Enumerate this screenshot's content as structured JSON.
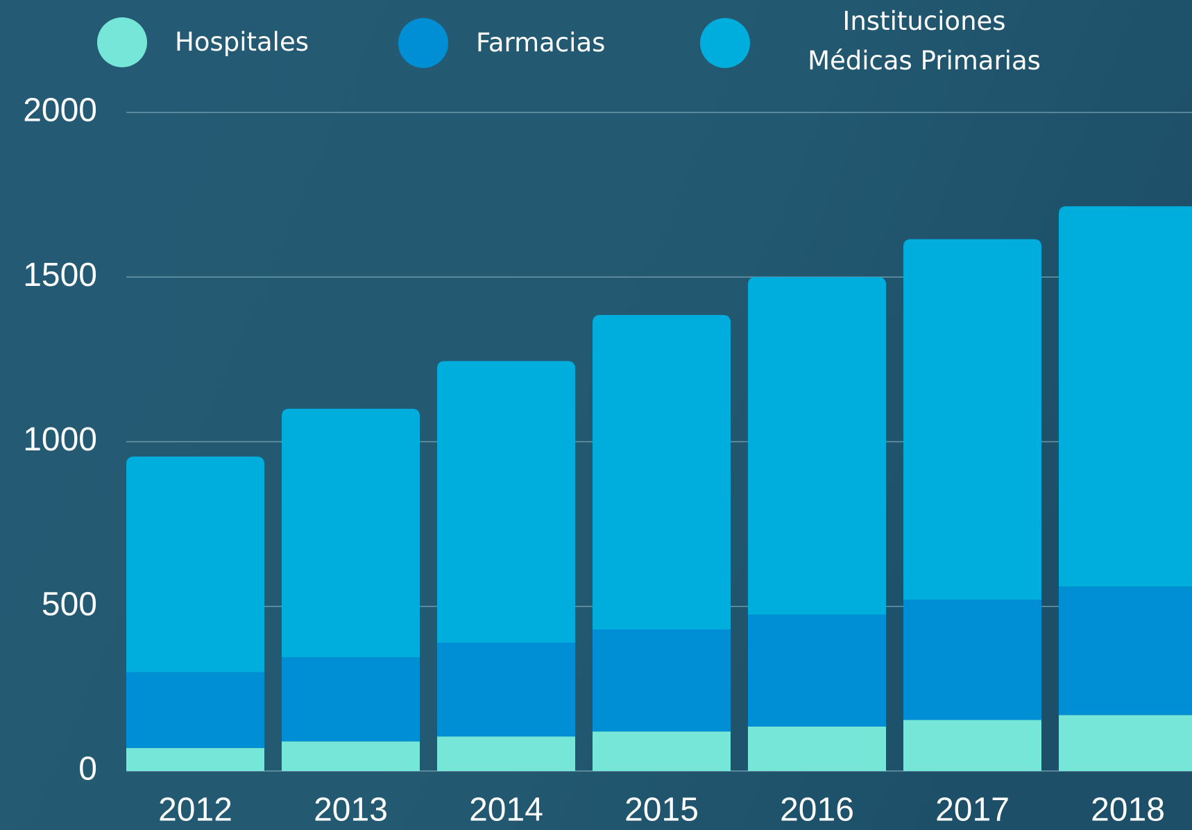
{
  "chart_data": {
    "type": "bar",
    "stacked": true,
    "categories": [
      "2012",
      "2013",
      "2014",
      "2015",
      "2016",
      "2017",
      "2018"
    ],
    "series": [
      {
        "name": "Hospitales",
        "color": "#76e6d8",
        "values": [
          70,
          90,
          105,
          120,
          135,
          155,
          170
        ]
      },
      {
        "name": "Farmacias",
        "color": "#008fd5",
        "values": [
          230,
          255,
          285,
          310,
          340,
          365,
          390
        ]
      },
      {
        "name": "Instituciones Médicas Primarias",
        "color": "#00aede",
        "values": [
          655,
          755,
          855,
          955,
          1025,
          1095,
          1155
        ]
      }
    ],
    "ylim": [
      0,
      2000
    ],
    "yticks": [
      0,
      500,
      1000,
      1500,
      2000
    ],
    "grid": true,
    "legend": "top"
  }
}
